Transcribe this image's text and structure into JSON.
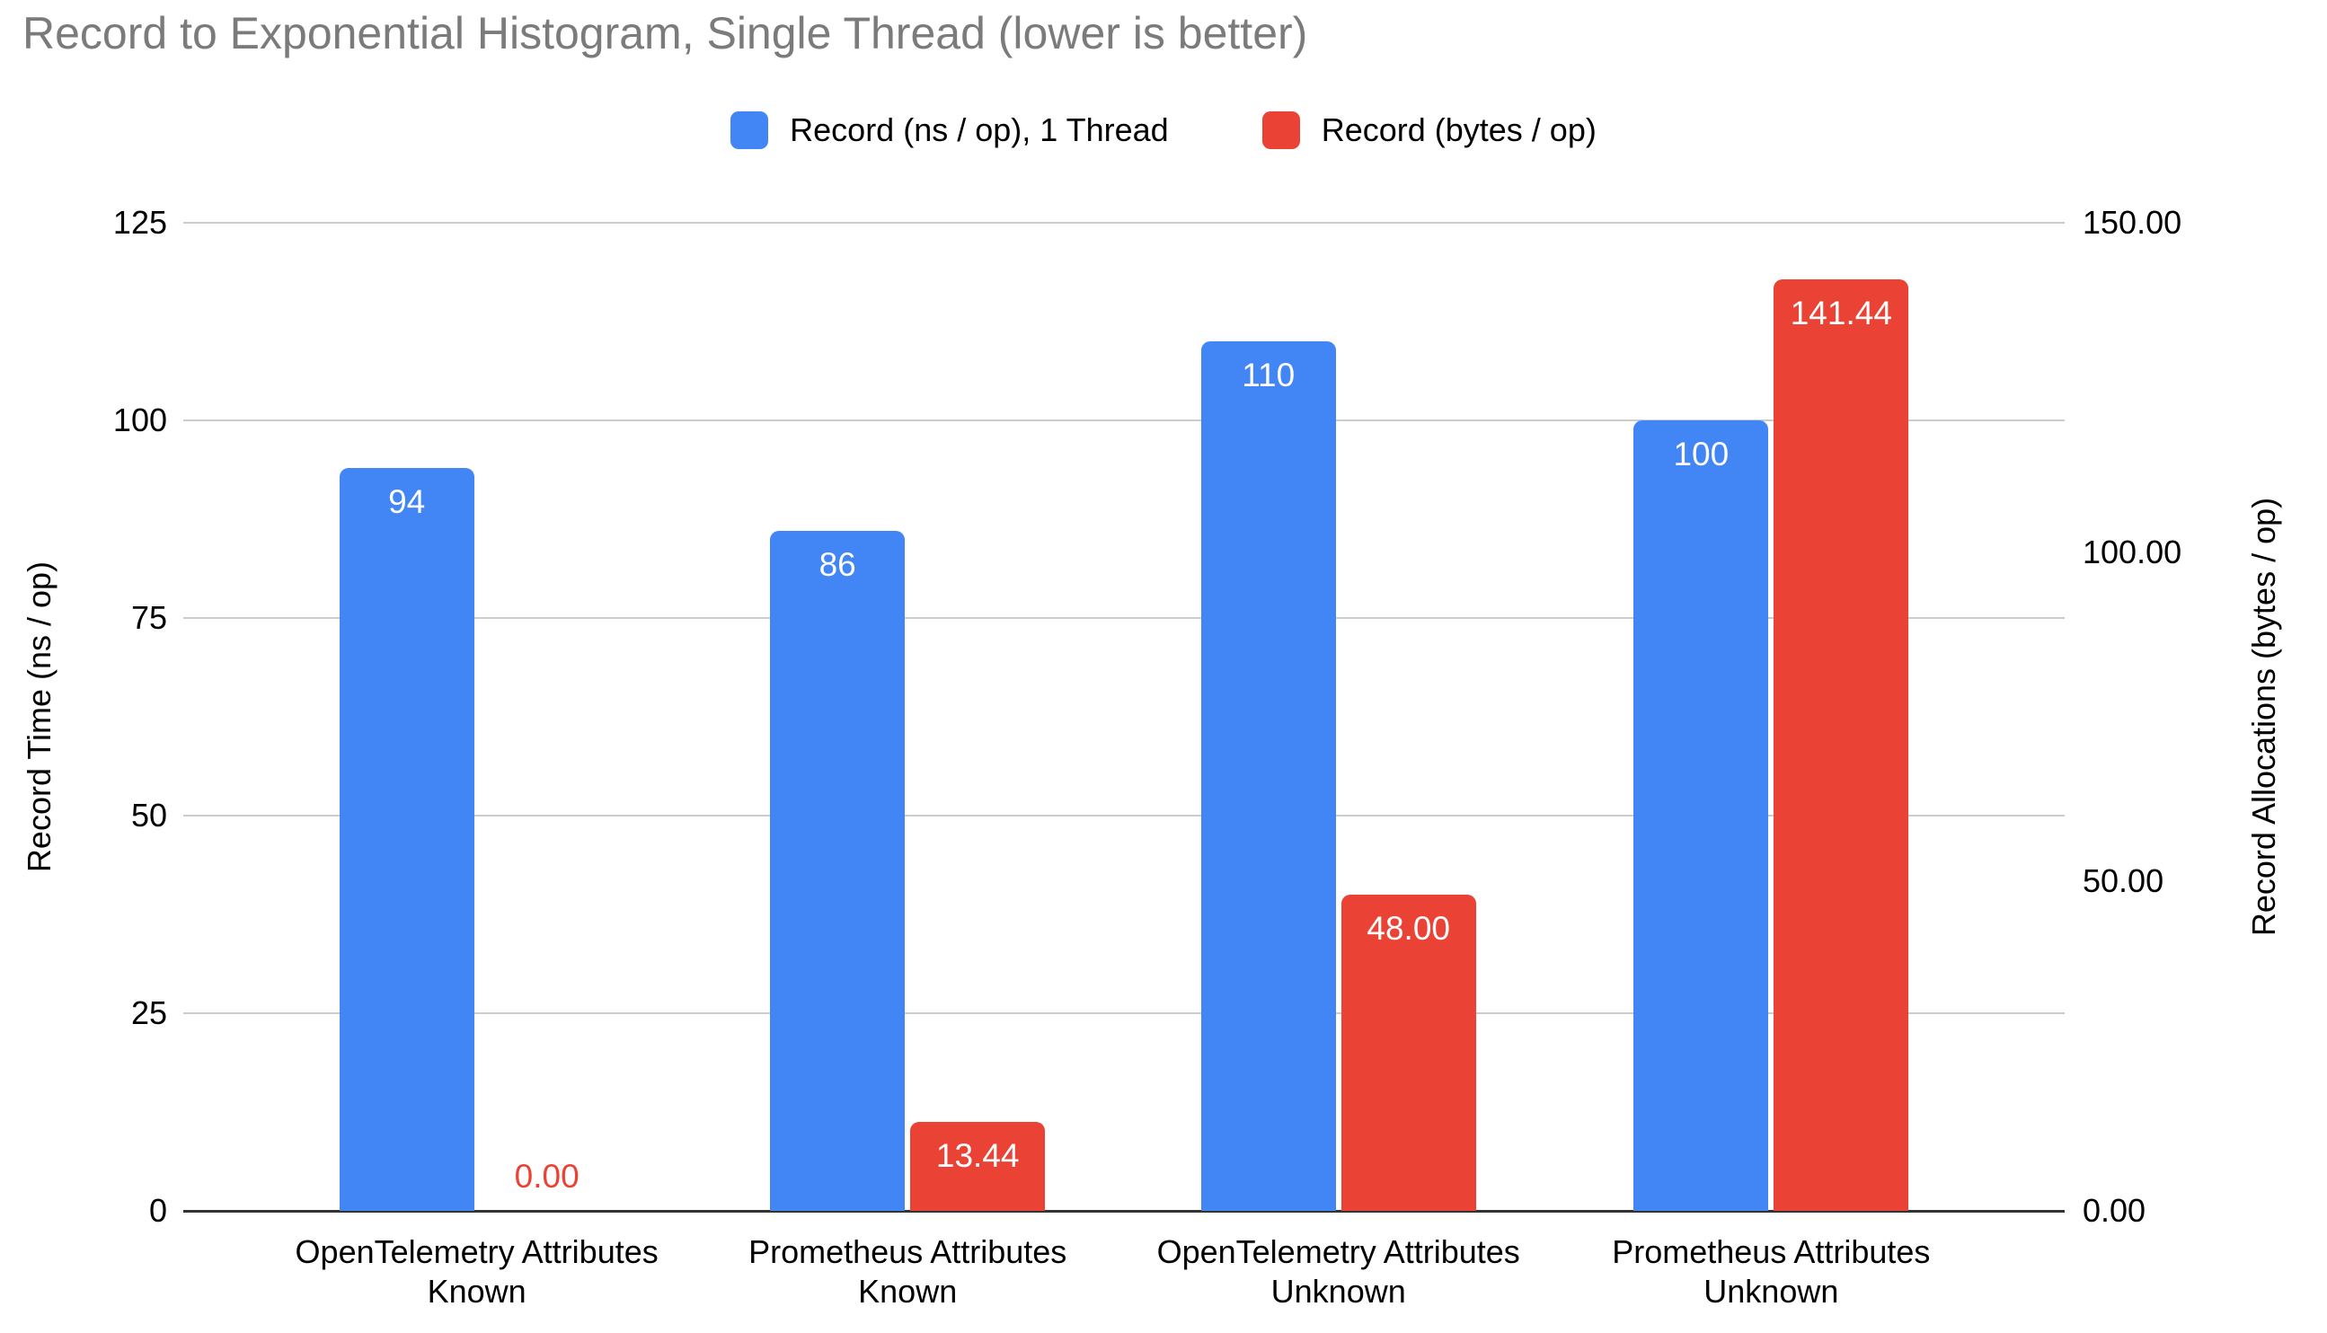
{
  "colors": {
    "blue": "#4285F4",
    "red": "#EA4335",
    "title_gray": "#7b7b7b",
    "gridline": "#cccccc",
    "baseline": "#333333",
    "bar_label_white": "#ffffff",
    "text_black": "#000000"
  },
  "chart_data": {
    "type": "bar",
    "title": "Record to Exponential Histogram, Single Thread (lower is better)",
    "legend_position": "top",
    "grid": true,
    "categories": [
      {
        "lines": [
          "OpenTelemetry Attributes",
          "Known"
        ]
      },
      {
        "lines": [
          "Prometheus Attributes",
          "Known"
        ]
      },
      {
        "lines": [
          "OpenTelemetry Attributes",
          "Unknown"
        ]
      },
      {
        "lines": [
          "Prometheus Attributes",
          "Unknown"
        ]
      }
    ],
    "series": [
      {
        "key": "record-ns",
        "name": "Record (ns / op), 1 Thread",
        "axis": "left",
        "color": "#4285F4",
        "values": [
          94,
          86,
          110,
          100
        ],
        "labels": [
          "94",
          "86",
          "110",
          "100"
        ]
      },
      {
        "key": "record-bytes",
        "name": "Record (bytes / op)",
        "axis": "right",
        "color": "#EA4335",
        "values": [
          0,
          13.44,
          48,
          141.44
        ],
        "labels": [
          "0.00",
          "13.44",
          "48.00",
          "141.44"
        ]
      }
    ],
    "left_axis": {
      "title": "Record Time (ns / op)",
      "max": 125,
      "ticks": [
        {
          "value": 0,
          "label": "0"
        },
        {
          "value": 25,
          "label": "25"
        },
        {
          "value": 50,
          "label": "50"
        },
        {
          "value": 75,
          "label": "75"
        },
        {
          "value": 100,
          "label": "100"
        },
        {
          "value": 125,
          "label": "125"
        }
      ]
    },
    "right_axis": {
      "title": "Record Allocations (bytes / op)",
      "max": 150,
      "ticks": [
        {
          "value": 0,
          "label": "0.00"
        },
        {
          "value": 50,
          "label": "50.00"
        },
        {
          "value": 100,
          "label": "100.00"
        },
        {
          "value": 150,
          "label": "150.00"
        }
      ]
    }
  }
}
